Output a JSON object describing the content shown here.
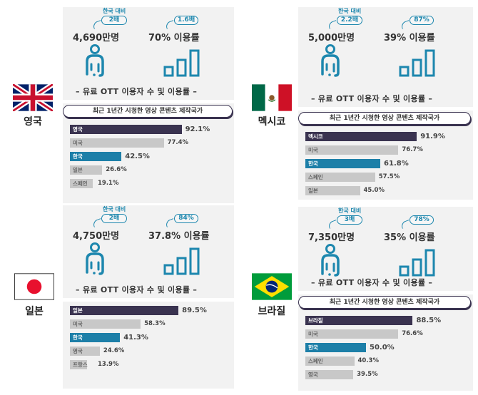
{
  "common": {
    "compare_label": "한국 대비",
    "stats_subtitle": "– 유료 OTT 이용자 수 및 이용률 –",
    "chart_title": "최근 1년간 시청한 영상 콘텐츠 제작국가",
    "usage_suffix": " 이용률"
  },
  "colors": {
    "accent": "#1d87ae",
    "home_bar": "#3a3350",
    "korea_bar": "#1d7fa8",
    "other_bar": "#c8c8c8",
    "panel_bg": "#f2f2f2"
  },
  "countries": [
    {
      "name": "영국",
      "flag": "uk-flag",
      "subscribers": "4,690만명",
      "subscribers_vs_korea": "2배",
      "usage_rate": "70%",
      "usage_vs_korea": "1.6배"
    },
    {
      "name": "멕시코",
      "flag": "mexico-flag",
      "subscribers": "5,000만명",
      "subscribers_vs_korea": "2.2배",
      "usage_rate": "39%",
      "usage_vs_korea": "87%"
    },
    {
      "name": "일본",
      "flag": "japan-flag",
      "subscribers": "4,750만명",
      "subscribers_vs_korea": "2배",
      "usage_rate": "37.8%",
      "usage_vs_korea": "84%"
    },
    {
      "name": "브라질",
      "flag": "brazil-flag",
      "subscribers": "7,350만명",
      "subscribers_vs_korea": "3배",
      "usage_rate": "35%",
      "usage_vs_korea": "78%"
    }
  ],
  "chart_data": [
    {
      "type": "bar",
      "orientation": "horizontal",
      "title": "최근 1년간 시청한 영상 콘텐츠 제작국가",
      "country": "영국",
      "categories": [
        "영국",
        "미국",
        "한국",
        "일본",
        "스페인"
      ],
      "values": [
        92.1,
        77.4,
        42.5,
        26.6,
        19.1
      ],
      "labels": [
        "92.1%",
        "77.4%",
        "42.5%",
        "26.6%",
        "19.1%"
      ],
      "unit": "%",
      "xlim": [
        0,
        100
      ]
    },
    {
      "type": "bar",
      "orientation": "horizontal",
      "title": "최근 1년간 시청한 영상 콘텐츠 제작국가",
      "country": "멕시코",
      "categories": [
        "멕시코",
        "미국",
        "한국",
        "스페인",
        "일본"
      ],
      "values": [
        91.9,
        76.7,
        61.8,
        57.5,
        45.0
      ],
      "labels": [
        "91.9%",
        "76.7%",
        "61.8%",
        "57.5%",
        "45.0%"
      ],
      "unit": "%",
      "xlim": [
        0,
        100
      ]
    },
    {
      "type": "bar",
      "orientation": "horizontal",
      "title": "최근 1년간 시청한 영상 콘텐츠 제작국가",
      "country": "일본",
      "categories": [
        "일본",
        "미국",
        "한국",
        "영국",
        "프랑스"
      ],
      "values": [
        89.5,
        58.3,
        41.3,
        24.6,
        13.9
      ],
      "labels": [
        "89.5%",
        "58.3%",
        "41.3%",
        "24.6%",
        "13.9%"
      ],
      "unit": "%",
      "xlim": [
        0,
        100
      ]
    },
    {
      "type": "bar",
      "orientation": "horizontal",
      "title": "최근 1년간 시청한 영상 콘텐츠 제작국가",
      "country": "브라질",
      "categories": [
        "브라질",
        "미국",
        "한국",
        "스페인",
        "영국"
      ],
      "values": [
        88.5,
        76.6,
        50.0,
        40.3,
        39.5
      ],
      "labels": [
        "88.5%",
        "76.6%",
        "50.0%",
        "40.3%",
        "39.5%"
      ],
      "unit": "%",
      "xlim": [
        0,
        100
      ]
    }
  ]
}
